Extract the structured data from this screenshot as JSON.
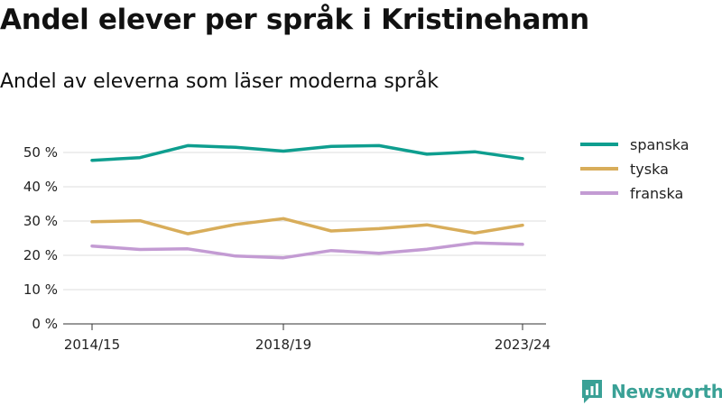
{
  "chart_data": {
    "type": "line",
    "title": "Andel elever per språk i Kristinehamn",
    "subtitle": "Andel av eleverna som läser moderna språk",
    "x": [
      "2014/15",
      "2015/16",
      "2016/17",
      "2017/18",
      "2018/19",
      "2019/20",
      "2020/21",
      "2021/22",
      "2022/23",
      "2023/24"
    ],
    "x_tick_labels": [
      "2014/15",
      "2018/19",
      "2023/24"
    ],
    "y_ticks": [
      0,
      10,
      20,
      30,
      40,
      50
    ],
    "y_tick_suffix": " %",
    "ylim": [
      0,
      55
    ],
    "grid": true,
    "legend_placement": "top-right",
    "series": [
      {
        "name": "spanska",
        "color": "#0e9e8f",
        "values": [
          47.7,
          48.5,
          52.0,
          51.5,
          50.4,
          51.8,
          52.0,
          49.5,
          50.2,
          48.2
        ]
      },
      {
        "name": "tyska",
        "color": "#d8ad5a",
        "values": [
          29.8,
          30.1,
          26.3,
          29.0,
          30.7,
          27.1,
          27.8,
          28.9,
          26.5,
          28.8
        ]
      },
      {
        "name": "franska",
        "color": "#c39bd3",
        "values": [
          22.7,
          21.7,
          21.9,
          19.8,
          19.3,
          21.4,
          20.6,
          21.8,
          23.6,
          23.2
        ]
      }
    ]
  },
  "brand": {
    "name": "Newsworthy",
    "icon": "bar-chart-speech-icon",
    "color": "#3aa196"
  }
}
